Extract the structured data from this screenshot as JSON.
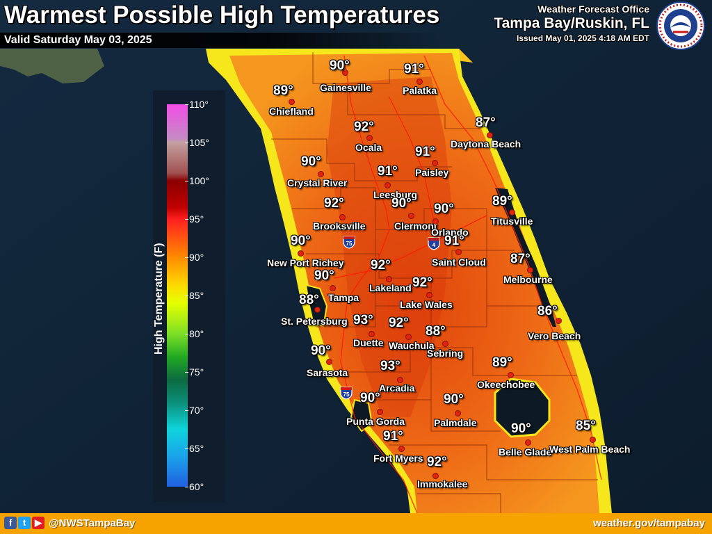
{
  "header": {
    "title": "Warmest Possible High Temperatures",
    "valid": "Valid Saturday May 03, 2025",
    "office_line1": "Weather Forecast Office",
    "office_line2": "Tampa Bay/Ruskin, FL",
    "issued": "Issued May 01, 2025 4:18 AM EDT",
    "logo_icon": "nws-logo-icon",
    "logo_text": "NATIONAL WEATHER SERVICE"
  },
  "legend": {
    "title": "High Temperature (F)",
    "ticks": [
      "110°",
      "105°",
      "100°",
      "95°",
      "90°",
      "85°",
      "80°",
      "75°",
      "70°",
      "65°",
      "60°"
    ],
    "range_f": [
      60,
      110
    ]
  },
  "highways": [
    {
      "label": "75"
    },
    {
      "label": "4"
    },
    {
      "label": "75"
    }
  ],
  "cities": [
    {
      "name": "Gainesville",
      "temp": "90°"
    },
    {
      "name": "Palatka",
      "temp": "91°"
    },
    {
      "name": "Chiefland",
      "temp": "89°"
    },
    {
      "name": "Ocala",
      "temp": "92°"
    },
    {
      "name": "Daytona Beach",
      "temp": "87°"
    },
    {
      "name": "Paisley",
      "temp": "91°"
    },
    {
      "name": "Crystal River",
      "temp": "90°"
    },
    {
      "name": "Leesburg",
      "temp": "91°"
    },
    {
      "name": "Titusville",
      "temp": "89°"
    },
    {
      "name": "Brooksville",
      "temp": "92°"
    },
    {
      "name": "Clermont",
      "temp": "90°"
    },
    {
      "name": "Orlando",
      "temp": "90°"
    },
    {
      "name": "New Port Richey",
      "temp": "90°"
    },
    {
      "name": "Saint Cloud",
      "temp": "91°"
    },
    {
      "name": "Melbourne",
      "temp": "87°"
    },
    {
      "name": "Lakeland",
      "temp": "92°"
    },
    {
      "name": "Tampa",
      "temp": "90°"
    },
    {
      "name": "Lake Wales",
      "temp": "92°"
    },
    {
      "name": "St. Petersburg",
      "temp": "88°"
    },
    {
      "name": "Vero Beach",
      "temp": "86°"
    },
    {
      "name": "Duette",
      "temp": "93°"
    },
    {
      "name": "Wauchula",
      "temp": "92°"
    },
    {
      "name": "Sebring",
      "temp": "88°"
    },
    {
      "name": "Sarasota",
      "temp": "90°"
    },
    {
      "name": "Okeechobee",
      "temp": "89°"
    },
    {
      "name": "Arcadia",
      "temp": "93°"
    },
    {
      "name": "Punta Gorda",
      "temp": "90°"
    },
    {
      "name": "Palmdale",
      "temp": "90°"
    },
    {
      "name": "Belle Glade",
      "temp": "90°"
    },
    {
      "name": "West Palm Beach",
      "temp": "85°"
    },
    {
      "name": "Fort Myers",
      "temp": "91°"
    },
    {
      "name": "Immokalee",
      "temp": "92°"
    }
  ],
  "footer": {
    "social_icons": [
      "facebook-icon",
      "twitter-icon",
      "youtube-icon"
    ],
    "handle": "@NWSTampaBay",
    "website": "weather.gov/tampabay"
  },
  "colors": {
    "heat_high": "#e0440c",
    "heat_mid": "#f07a1a",
    "coast_yellow": "#f6e61c",
    "water": "#0f2236",
    "footer": "#f6a300",
    "dot": "#e5220e"
  }
}
